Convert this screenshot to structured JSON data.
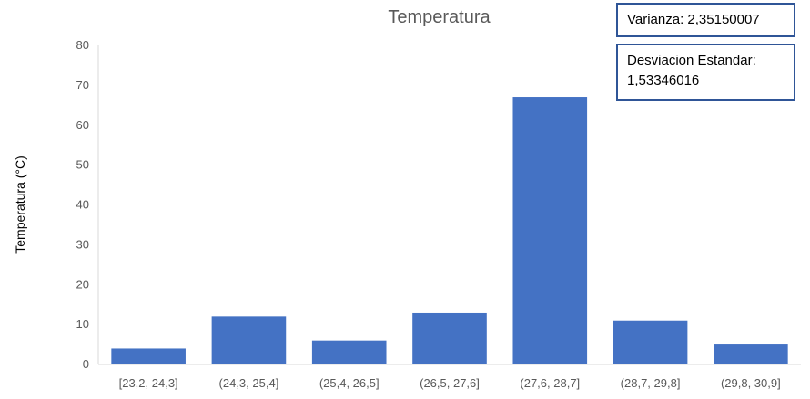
{
  "chart_data": {
    "type": "bar",
    "title": "Temperatura",
    "ylabel": "Temperatura (°C)",
    "xlabel": "",
    "categories": [
      "[23,2, 24,3]",
      "(24,3, 25,4]",
      "(25,4, 26,5]",
      "(26,5, 27,6]",
      "(27,6, 28,7]",
      "(28,7, 29,8]",
      "(29,8, 30,9]"
    ],
    "values": [
      4,
      12,
      6,
      13,
      67,
      11,
      5
    ],
    "ylim": [
      0,
      80
    ],
    "yticks": [
      0,
      10,
      20,
      30,
      40,
      50,
      60,
      70,
      80
    ],
    "grid": false,
    "bar_color": "#4472c4"
  },
  "annotations": {
    "varianza_label": "Varianza: 2,35150007",
    "desviacion_line1": "Desviacion Estandar:",
    "desviacion_line2": "1,53346016"
  }
}
